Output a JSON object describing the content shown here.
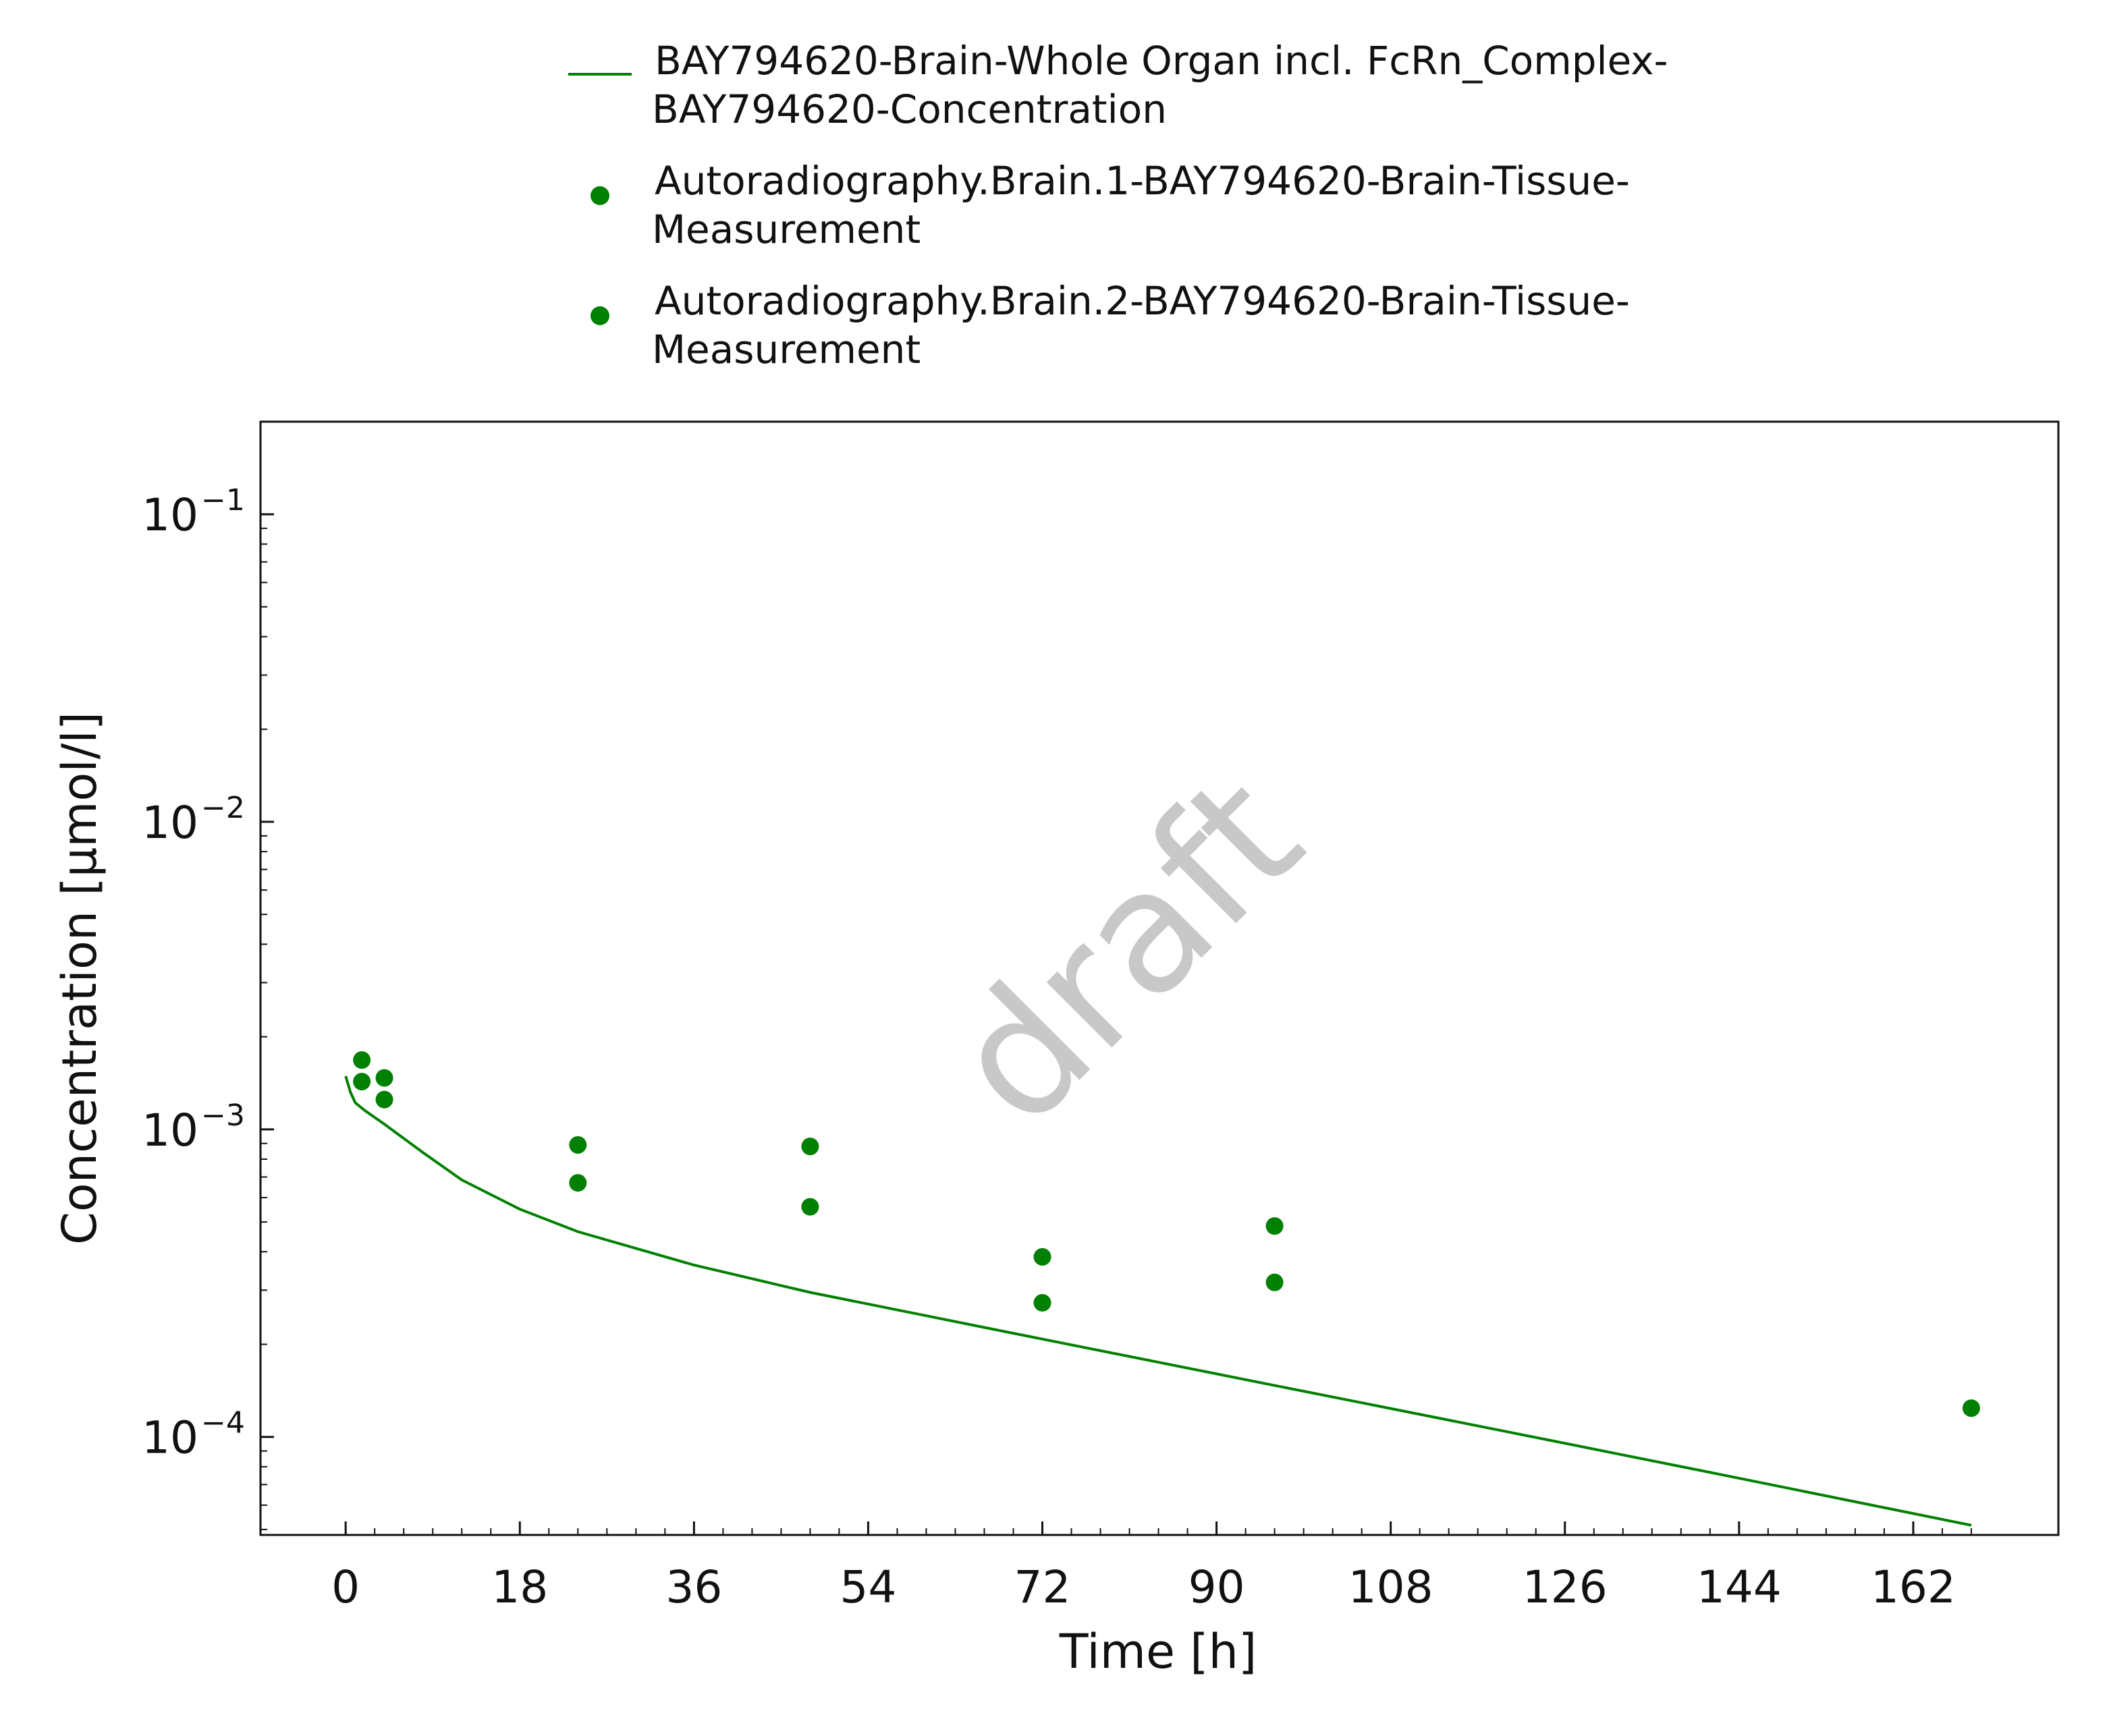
{
  "chart_data": {
    "type": "line",
    "xlabel": "Time [h]",
    "ylabel": "Concentration [µmol/l]",
    "yscale": "log",
    "xlim": [
      -8.8,
      177
    ],
    "ylim": [
      4.8e-05,
      0.2
    ],
    "x_ticks": [
      "0",
      "18",
      "36",
      "54",
      "72",
      "90",
      "108",
      "126",
      "144",
      "162"
    ],
    "x_tick_values": [
      0,
      18,
      36,
      54,
      72,
      90,
      108,
      126,
      144,
      162
    ],
    "y_ticks": [
      {
        "base": "10",
        "exp": "−1",
        "value": 0.1
      },
      {
        "base": "10",
        "exp": "−2",
        "value": 0.01
      },
      {
        "base": "10",
        "exp": "−3",
        "value": 0.001
      },
      {
        "base": "10",
        "exp": "−4",
        "value": 0.0001
      }
    ],
    "grid": false,
    "legend_position": "top (above plot)",
    "watermark": "draft",
    "series": [
      {
        "name": "BAY794620-Brain-Whole Organ incl. FcRn_Complex-BAY794620-Concentration",
        "legend_lines": [
          "BAY794620-Brain-Whole Organ incl. FcRn_Complex-",
          "BAY794620-Concentration"
        ],
        "style": "line",
        "color": "#008000",
        "x": [
          0,
          0.5,
          1,
          2,
          4,
          8,
          12,
          18,
          24,
          36,
          48,
          72,
          96,
          120,
          144,
          168
        ],
        "y": [
          0.00149,
          0.00132,
          0.00122,
          0.00115,
          0.00104,
          0.00084,
          0.000685,
          0.00055,
          0.000465,
          0.000362,
          0.000295,
          0.000208,
          0.000147,
          0.000104,
          7.34e-05,
          5.16e-05
        ]
      },
      {
        "name": "Autoradiography.Brain.1-BAY794620-Brain-Tissue-Measurement",
        "legend_lines": [
          "Autoradiography.Brain.1-BAY794620-Brain-Tissue-",
          "Measurement"
        ],
        "style": "scatter",
        "color": "#008000",
        "x": [
          1.67,
          4,
          24,
          48,
          72,
          96,
          168
        ],
        "y": [
          0.00168,
          0.00147,
          0.00089,
          0.00088,
          0.000385,
          0.000485,
          0.000124
        ]
      },
      {
        "name": "Autoradiography.Brain.2-BAY794620-Brain-Tissue-Measurement",
        "legend_lines": [
          "Autoradiography.Brain.2-BAY794620-Brain-Tissue-",
          "Measurement"
        ],
        "style": "scatter",
        "color": "#008000",
        "x": [
          1.67,
          4,
          24,
          48,
          72,
          96
        ],
        "y": [
          0.00143,
          0.00125,
          0.00067,
          0.00056,
          0.000273,
          0.000318
        ]
      }
    ]
  }
}
